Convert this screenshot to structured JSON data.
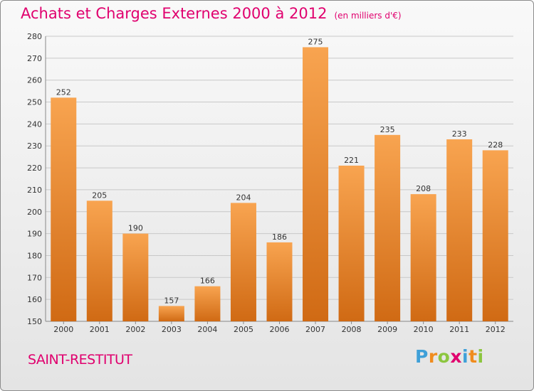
{
  "header": {
    "title": "Achats et Charges Externes 2000 à 2012",
    "subtitle": "(en milliers d'€)"
  },
  "footer": {
    "place": "SAINT-RESTITUT",
    "logo": {
      "letters": [
        "P",
        "r",
        "o",
        "x",
        "i",
        "t",
        "i"
      ],
      "colors": [
        "#3fa0d8",
        "#f08c1e",
        "#8cc63f",
        "#e0006e",
        "#3fa0d8",
        "#f08c1e",
        "#8cc63f"
      ]
    }
  },
  "colors": {
    "bar_light": "#f8a450",
    "bar_dark": "#d06a14",
    "grid": "#c8c8c8"
  },
  "chart_data": {
    "type": "bar",
    "title": "Achats et Charges Externes 2000 à 2012",
    "subtitle": "(en milliers d'€)",
    "xlabel": "",
    "ylabel": "",
    "categories": [
      "2000",
      "2001",
      "2002",
      "2003",
      "2004",
      "2005",
      "2006",
      "2007",
      "2008",
      "2009",
      "2010",
      "2011",
      "2012"
    ],
    "values": [
      252,
      205,
      190,
      157,
      166,
      204,
      186,
      275,
      221,
      235,
      208,
      233,
      228
    ],
    "ylim": [
      150,
      280
    ],
    "yticks": [
      150,
      160,
      170,
      180,
      190,
      200,
      210,
      220,
      230,
      240,
      250,
      260,
      270,
      280
    ],
    "grid": true,
    "data_labels": true
  }
}
